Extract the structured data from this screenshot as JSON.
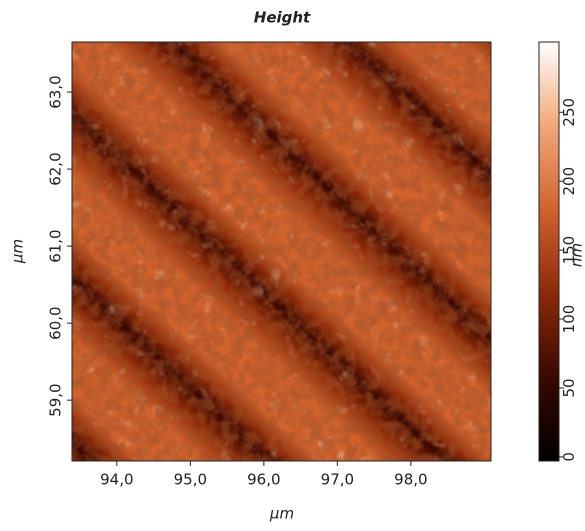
{
  "chart_data": {
    "type": "image",
    "title": "Height",
    "xlabel": "μm",
    "ylabel": "μm",
    "colorbar_label": "nm",
    "xlim": [
      93.39,
      99.09
    ],
    "xticks": [
      {
        "value": 94,
        "label": "94,0"
      },
      {
        "value": 95,
        "label": "95,0"
      },
      {
        "value": 96,
        "label": "96,0"
      },
      {
        "value": 97,
        "label": "97,0"
      },
      {
        "value": 98,
        "label": "98,0"
      }
    ],
    "ylim": [
      58.21,
      63.65
    ],
    "yticks": [
      {
        "value": 59,
        "label": "59,0"
      },
      {
        "value": 60,
        "label": "60,0"
      },
      {
        "value": 61,
        "label": "61,0"
      },
      {
        "value": 62,
        "label": "62,0"
      },
      {
        "value": 63,
        "label": "63,0"
      }
    ],
    "zlim": [
      -3,
      301
    ],
    "zticks": [
      0,
      50,
      100,
      150,
      200,
      250
    ],
    "colormap": [
      "#000000",
      "#3a0800",
      "#8c2a08",
      "#d0632e",
      "#f2a878",
      "#ffffff"
    ]
  }
}
